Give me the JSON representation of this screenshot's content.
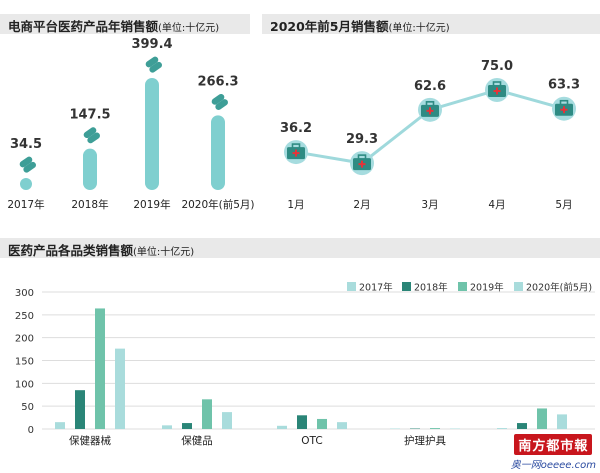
{
  "chart_data": [
    {
      "type": "bar",
      "title": "电商平台医药产品年销售额",
      "unit": "(单位:十亿元)",
      "categories": [
        "2017年",
        "2018年",
        "2019年",
        "2020年(前5月)"
      ],
      "values": [
        34.5,
        147.5,
        399.4,
        266.3
      ],
      "value_labels": [
        "34.5",
        "147.5",
        "399.4",
        "266.3"
      ],
      "colors": {
        "bar": "#7fcfcf",
        "icon": "#3e9e97"
      }
    },
    {
      "type": "line",
      "title": "2020年前5月销售额",
      "unit": "(单位:十亿元)",
      "categories": [
        "1月",
        "2月",
        "3月",
        "4月",
        "5月"
      ],
      "values": [
        36.2,
        29.3,
        62.6,
        75.0,
        63.3
      ],
      "value_labels": [
        "36.2",
        "29.3",
        "62.6",
        "75.0",
        "63.3"
      ],
      "colors": {
        "line": "#9fd9dc",
        "marker_box": "#2e8b83",
        "marker_bg": "#a6dcdf",
        "cross": "#e4343a"
      }
    },
    {
      "type": "bar",
      "title": "医药产品各品类销售额",
      "unit": "(单位:十亿元)",
      "categories": [
        "保健器械",
        "保健品",
        "OTC",
        "护理护具",
        ""
      ],
      "series": [
        {
          "name": "2017年",
          "values": [
            15,
            8,
            7,
            1,
            2
          ],
          "color": "#a9dcdc"
        },
        {
          "name": "2018年",
          "values": [
            85,
            13,
            30,
            1,
            13
          ],
          "color": "#2a8577"
        },
        {
          "name": "2019年",
          "values": [
            264,
            65,
            22,
            2,
            45
          ],
          "color": "#6fc3aa"
        },
        {
          "name": "2020年(前5月)",
          "values": [
            176,
            37,
            15,
            1,
            32
          ],
          "color": "#a9dcdc"
        }
      ],
      "yticks": [
        "0",
        "50",
        "100",
        "150",
        "200",
        "250",
        "300"
      ],
      "ylim": [
        0,
        300
      ],
      "grid": true,
      "legend": "top-right"
    }
  ],
  "logo": {
    "name": "南方都市報",
    "url": "奥一网oeeee.com"
  }
}
